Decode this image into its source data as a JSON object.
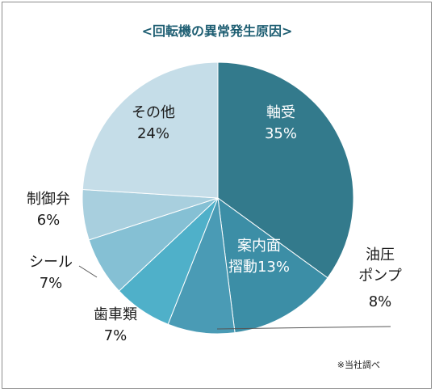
{
  "chart_data": {
    "type": "pie",
    "title": "<回転機の異常発生原因>",
    "start_angle_deg": 0,
    "direction": "clockwise",
    "slices": [
      {
        "label": "軸受",
        "value": 35,
        "value_text": "35%",
        "color": "#337a8c"
      },
      {
        "label": "案内面\n摺動",
        "value": 13,
        "value_text": "13%",
        "color": "#3c8ea6"
      },
      {
        "label": "油圧\nポンプ",
        "value": 8,
        "value_text": "8%",
        "color": "#4a9bb5"
      },
      {
        "label": "歯車類",
        "value": 7,
        "value_text": "7%",
        "color": "#4fb0c9"
      },
      {
        "label": "シール",
        "value": 7,
        "value_text": "7%",
        "color": "#85c0d4"
      },
      {
        "label": "制御弁",
        "value": 6,
        "value_text": "6%",
        "color": "#a8cfde"
      },
      {
        "label": "その他",
        "value": 24,
        "value_text": "24%",
        "color": "#c5dde8"
      }
    ]
  },
  "colors": {
    "title": "#1f5f73",
    "frame": "#8c8c8c"
  },
  "source_note": "※当社調べ"
}
